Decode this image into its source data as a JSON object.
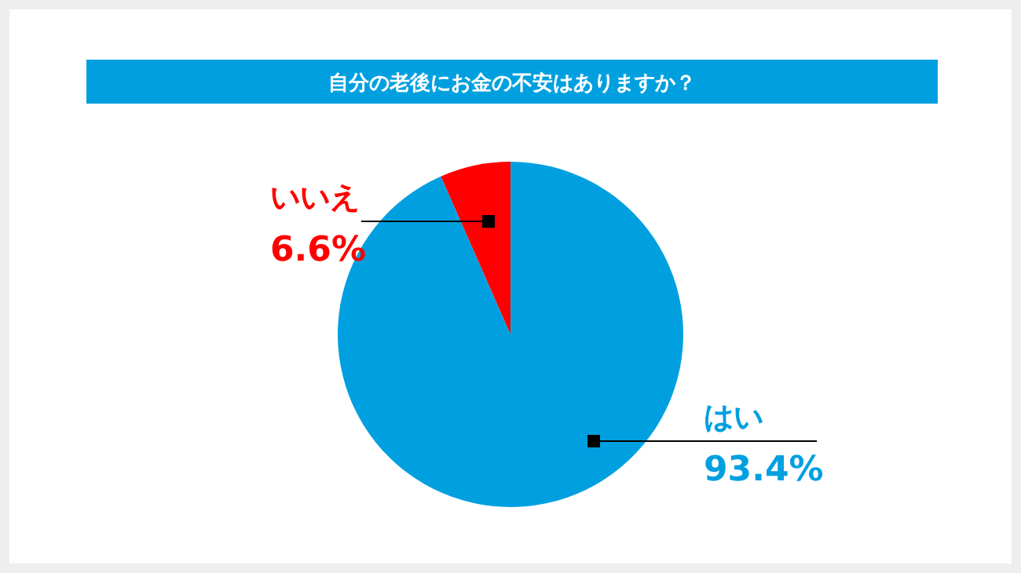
{
  "chart_data": {
    "type": "pie",
    "title": "自分の老後にお金の不安はありますか？",
    "categories": [
      "はい",
      "いいえ"
    ],
    "values": [
      93.4,
      6.6
    ],
    "colors": [
      "#00a0e0",
      "#ff0000"
    ],
    "value_labels": [
      "93.4%",
      "6.6%"
    ]
  }
}
